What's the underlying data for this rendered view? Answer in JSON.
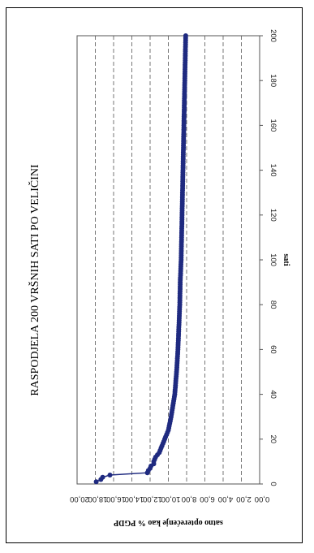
{
  "chart_data": {
    "type": "line",
    "orientation": "rotated-90-counterclockwise",
    "title": "RASPODJELA 200 VRŠNIH SATI PO VELIČINI",
    "xlabel": "sati",
    "ylabel": "satno opterećenje kao % PGDP",
    "xlim": [
      0,
      200
    ],
    "ylim": [
      0,
      20
    ],
    "x_ticks": [
      "0",
      "20",
      "40",
      "60",
      "80",
      "100",
      "120",
      "140",
      "160",
      "180",
      "200"
    ],
    "y_ticks": [
      "0,00",
      "2,00",
      "4,00",
      "6,00",
      "8,00",
      "10,00",
      "12,00",
      "14,00",
      "16,00",
      "18,00",
      "20,00"
    ],
    "grid": "horizontal-dashed",
    "legend": "none",
    "series_color": "#1f2a80",
    "series": [
      {
        "x": [
          1,
          2,
          3,
          4,
          5,
          6,
          7,
          8,
          9,
          10,
          11,
          12,
          13,
          14,
          15,
          16,
          17,
          18,
          19,
          20,
          22,
          24,
          26,
          28,
          30,
          35,
          40,
          45,
          50,
          60,
          70,
          80,
          90,
          100,
          110,
          120,
          130,
          140,
          150,
          160,
          170,
          180,
          190,
          200
        ],
        "y": [
          17.9,
          17.4,
          17.2,
          16.4,
          12.3,
          12.2,
          12.0,
          11.9,
          11.6,
          11.6,
          11.5,
          11.4,
          11.2,
          11.0,
          10.9,
          10.8,
          10.7,
          10.6,
          10.5,
          10.4,
          10.2,
          10.0,
          9.9,
          9.8,
          9.7,
          9.5,
          9.3,
          9.2,
          9.1,
          8.95,
          8.85,
          8.75,
          8.7,
          8.6,
          8.55,
          8.5,
          8.45,
          8.4,
          8.35,
          8.3,
          8.25,
          8.2,
          8.15,
          8.1
        ]
      }
    ]
  }
}
